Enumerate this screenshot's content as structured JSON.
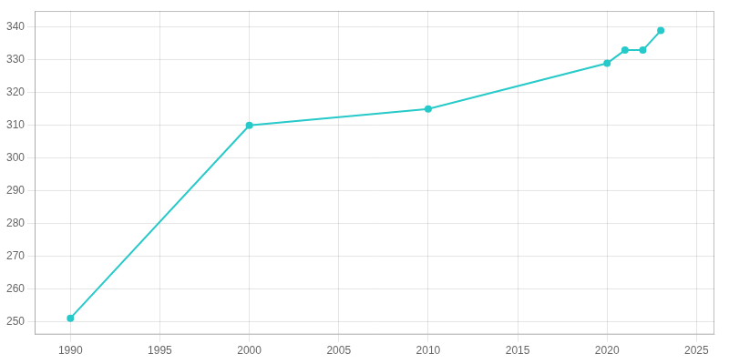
{
  "chart_data": {
    "type": "line",
    "x": [
      1990,
      2000,
      2010,
      2020,
      2021,
      2022,
      2023
    ],
    "values": [
      251,
      310,
      315,
      329,
      333,
      333,
      339
    ],
    "color": "#27c9c9",
    "marker": "circle",
    "xlim": [
      1988,
      2026
    ],
    "ylim": [
      246,
      345
    ],
    "xticks": [
      1990,
      1995,
      2000,
      2005,
      2010,
      2015,
      2020,
      2025
    ],
    "yticks": [
      250,
      260,
      270,
      280,
      290,
      300,
      310,
      320,
      330,
      340
    ],
    "grid": true
  }
}
